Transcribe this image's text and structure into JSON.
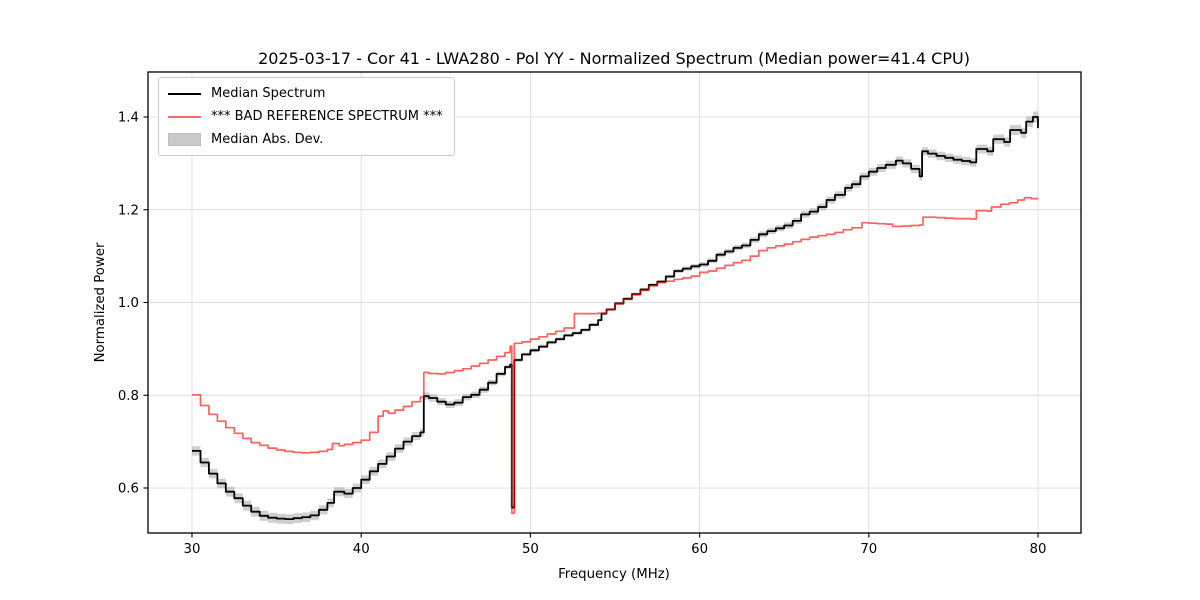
{
  "title": "2025-03-17 - Cor 41 - LWA280 - Pol YY - Normalized Spectrum (Median power=41.4 CPU)",
  "legend": {
    "items": [
      {
        "label": "Median Spectrum",
        "swatch": "black-line"
      },
      {
        "label": "*** BAD REFERENCE SPECTRUM ***",
        "swatch": "red-line"
      },
      {
        "label": "Median Abs. Dev.",
        "swatch": "gray-patch"
      }
    ]
  },
  "chart_data": {
    "type": "line",
    "title": "2025-03-17 - Cor 41 - LWA280 - Pol YY - Normalized Spectrum (Median power=41.4 CPU)",
    "xlabel": "Frequency (MHz)",
    "ylabel": "Normalized Power",
    "xlim": [
      27.4,
      82.54
    ],
    "ylim": [
      0.503,
      1.497
    ],
    "xticks": [
      30,
      40,
      50,
      60,
      70,
      80
    ],
    "yticks": [
      0.6,
      0.8,
      1.0,
      1.2,
      1.4
    ],
    "grid": true,
    "legend_position": "upper left",
    "step_style": "step-after",
    "colors": {
      "median": "#000000",
      "reference_rgba": "rgba(255,0,0,0.62)",
      "band_fill": "#8c8c8c",
      "band_opacity": 0.42,
      "grid": "#dcdcdc",
      "spine": "#000000"
    },
    "series": [
      {
        "name": "Median Spectrum",
        "role": "median",
        "points": [
          [
            30,
            0.68
          ],
          [
            30.5,
            0.655
          ],
          [
            31,
            0.631
          ],
          [
            31.5,
            0.61
          ],
          [
            32,
            0.592
          ],
          [
            32.5,
            0.578
          ],
          [
            33,
            0.562
          ],
          [
            33.5,
            0.549
          ],
          [
            34,
            0.54
          ],
          [
            34.5,
            0.536
          ],
          [
            35,
            0.534
          ],
          [
            35.5,
            0.533
          ],
          [
            36,
            0.535
          ],
          [
            36.5,
            0.537
          ],
          [
            37,
            0.541
          ],
          [
            37.5,
            0.553
          ],
          [
            38,
            0.568
          ],
          [
            38.4,
            0.592
          ],
          [
            39,
            0.588
          ],
          [
            39.5,
            0.6
          ],
          [
            40,
            0.618
          ],
          [
            40.5,
            0.636
          ],
          [
            41,
            0.652
          ],
          [
            41.5,
            0.668
          ],
          [
            42,
            0.685
          ],
          [
            42.5,
            0.7
          ],
          [
            43,
            0.712
          ],
          [
            43.5,
            0.72
          ],
          [
            43.7,
            0.798
          ],
          [
            44,
            0.794
          ],
          [
            44.5,
            0.786
          ],
          [
            45,
            0.78
          ],
          [
            45.5,
            0.784
          ],
          [
            46,
            0.796
          ],
          [
            46.5,
            0.801
          ],
          [
            47,
            0.812
          ],
          [
            47.5,
            0.827
          ],
          [
            48,
            0.846
          ],
          [
            48.5,
            0.861
          ],
          [
            48.8,
            0.866
          ],
          [
            48.9,
            0.558
          ],
          [
            49.05,
            0.876
          ],
          [
            49.5,
            0.888
          ],
          [
            50,
            0.897
          ],
          [
            50.5,
            0.905
          ],
          [
            51,
            0.914
          ],
          [
            51.5,
            0.921
          ],
          [
            52,
            0.929
          ],
          [
            52.5,
            0.934
          ],
          [
            53,
            0.941
          ],
          [
            53.5,
            0.952
          ],
          [
            54,
            0.962
          ],
          [
            54.2,
            0.976
          ],
          [
            54.5,
            0.985
          ],
          [
            55,
            0.998
          ],
          [
            55.5,
            1.008
          ],
          [
            56,
            1.018
          ],
          [
            56.5,
            1.028
          ],
          [
            57,
            1.038
          ],
          [
            57.5,
            1.045
          ],
          [
            58,
            1.056
          ],
          [
            58.5,
            1.068
          ],
          [
            59,
            1.073
          ],
          [
            59.5,
            1.078
          ],
          [
            60,
            1.082
          ],
          [
            60.5,
            1.09
          ],
          [
            61,
            1.103
          ],
          [
            61.5,
            1.11
          ],
          [
            62,
            1.118
          ],
          [
            62.5,
            1.123
          ],
          [
            63,
            1.135
          ],
          [
            63.5,
            1.147
          ],
          [
            64,
            1.154
          ],
          [
            64.5,
            1.16
          ],
          [
            65,
            1.166
          ],
          [
            65.5,
            1.176
          ],
          [
            66,
            1.19
          ],
          [
            66.5,
            1.196
          ],
          [
            67,
            1.206
          ],
          [
            67.5,
            1.221
          ],
          [
            68,
            1.232
          ],
          [
            68.6,
            1.247
          ],
          [
            69,
            1.255
          ],
          [
            69.5,
            1.272
          ],
          [
            70,
            1.282
          ],
          [
            70.5,
            1.29
          ],
          [
            71,
            1.297
          ],
          [
            71.6,
            1.306
          ],
          [
            72,
            1.3
          ],
          [
            72.5,
            1.288
          ],
          [
            73,
            1.272
          ],
          [
            73.15,
            1.326
          ],
          [
            73.5,
            1.321
          ],
          [
            74,
            1.316
          ],
          [
            74.5,
            1.312
          ],
          [
            75,
            1.308
          ],
          [
            75.5,
            1.305
          ],
          [
            76,
            1.302
          ],
          [
            76.35,
            1.331
          ],
          [
            77,
            1.326
          ],
          [
            77.35,
            1.352
          ],
          [
            78,
            1.346
          ],
          [
            78.35,
            1.372
          ],
          [
            79,
            1.366
          ],
          [
            79.3,
            1.39
          ],
          [
            79.7,
            1.4
          ],
          [
            80,
            1.376
          ]
        ]
      },
      {
        "name": "*** BAD REFERENCE SPECTRUM ***",
        "role": "reference",
        "points": [
          [
            30,
            0.801
          ],
          [
            30.5,
            0.778
          ],
          [
            31,
            0.759
          ],
          [
            31.5,
            0.744
          ],
          [
            32,
            0.73
          ],
          [
            32.5,
            0.718
          ],
          [
            33,
            0.707
          ],
          [
            33.5,
            0.698
          ],
          [
            34,
            0.692
          ],
          [
            34.5,
            0.686
          ],
          [
            35,
            0.682
          ],
          [
            35.5,
            0.679
          ],
          [
            36,
            0.677
          ],
          [
            36.5,
            0.676
          ],
          [
            37,
            0.677
          ],
          [
            37.5,
            0.679
          ],
          [
            38,
            0.683
          ],
          [
            38.3,
            0.696
          ],
          [
            38.7,
            0.691
          ],
          [
            39,
            0.694
          ],
          [
            39.5,
            0.698
          ],
          [
            40,
            0.703
          ],
          [
            40.5,
            0.72
          ],
          [
            41,
            0.755
          ],
          [
            41.3,
            0.766
          ],
          [
            41.6,
            0.761
          ],
          [
            42,
            0.768
          ],
          [
            42.5,
            0.776
          ],
          [
            43,
            0.786
          ],
          [
            43.5,
            0.796
          ],
          [
            43.7,
            0.849
          ],
          [
            44,
            0.847
          ],
          [
            44.5,
            0.846
          ],
          [
            45,
            0.849
          ],
          [
            45.5,
            0.853
          ],
          [
            46,
            0.857
          ],
          [
            46.5,
            0.863
          ],
          [
            47,
            0.869
          ],
          [
            47.5,
            0.876
          ],
          [
            48,
            0.884
          ],
          [
            48.5,
            0.892
          ],
          [
            48.8,
            0.906
          ],
          [
            48.9,
            0.546
          ],
          [
            49.05,
            0.912
          ],
          [
            49.5,
            0.915
          ],
          [
            50,
            0.921
          ],
          [
            50.5,
            0.926
          ],
          [
            51,
            0.932
          ],
          [
            51.5,
            0.938
          ],
          [
            52,
            0.945
          ],
          [
            52.6,
            0.976
          ],
          [
            53,
            0.976
          ],
          [
            53.5,
            0.976
          ],
          [
            54,
            0.977
          ],
          [
            54.5,
            0.985
          ],
          [
            55,
            0.997
          ],
          [
            55.5,
            1.007
          ],
          [
            56,
            1.017
          ],
          [
            56.5,
            1.026
          ],
          [
            57,
            1.036
          ],
          [
            57.5,
            1.043
          ],
          [
            58,
            1.046
          ],
          [
            58.5,
            1.05
          ],
          [
            59,
            1.053
          ],
          [
            59.5,
            1.057
          ],
          [
            60,
            1.065
          ],
          [
            60.5,
            1.068
          ],
          [
            61,
            1.074
          ],
          [
            61.5,
            1.08
          ],
          [
            62,
            1.086
          ],
          [
            62.5,
            1.091
          ],
          [
            63,
            1.1
          ],
          [
            63.5,
            1.112
          ],
          [
            64,
            1.118
          ],
          [
            64.5,
            1.122
          ],
          [
            65,
            1.126
          ],
          [
            65.5,
            1.131
          ],
          [
            66,
            1.136
          ],
          [
            66.5,
            1.141
          ],
          [
            67,
            1.144
          ],
          [
            67.5,
            1.147
          ],
          [
            68,
            1.151
          ],
          [
            68.5,
            1.157
          ],
          [
            69,
            1.161
          ],
          [
            69.6,
            1.172
          ],
          [
            70,
            1.171
          ],
          [
            70.5,
            1.17
          ],
          [
            71,
            1.169
          ],
          [
            71.4,
            1.164
          ],
          [
            72,
            1.165
          ],
          [
            72.5,
            1.166
          ],
          [
            73,
            1.167
          ],
          [
            73.2,
            1.184
          ],
          [
            74,
            1.183
          ],
          [
            74.5,
            1.182
          ],
          [
            75,
            1.181
          ],
          [
            75.5,
            1.181
          ],
          [
            76,
            1.18
          ],
          [
            76.35,
            1.198
          ],
          [
            77,
            1.197
          ],
          [
            77.25,
            1.206
          ],
          [
            77.8,
            1.212
          ],
          [
            78.3,
            1.215
          ],
          [
            78.8,
            1.221
          ],
          [
            79.2,
            1.226
          ],
          [
            79.6,
            1.224
          ],
          [
            80,
            1.224
          ]
        ]
      },
      {
        "name": "Median Abs. Dev.",
        "role": "band",
        "around": "Median Spectrum",
        "halfwidths": [
          [
            30,
            0.01
          ],
          [
            34,
            0.011
          ],
          [
            38,
            0.01
          ],
          [
            43,
            0.009
          ],
          [
            44,
            0.008
          ],
          [
            47,
            0.007
          ],
          [
            49,
            0.004
          ],
          [
            52,
            0.004
          ],
          [
            55,
            0.003
          ],
          [
            58,
            0.004
          ],
          [
            60,
            0.005
          ],
          [
            63,
            0.006
          ],
          [
            66,
            0.007
          ],
          [
            69,
            0.008
          ],
          [
            72,
            0.009
          ],
          [
            76,
            0.009
          ],
          [
            79,
            0.011
          ],
          [
            80,
            0.012
          ]
        ]
      }
    ]
  }
}
